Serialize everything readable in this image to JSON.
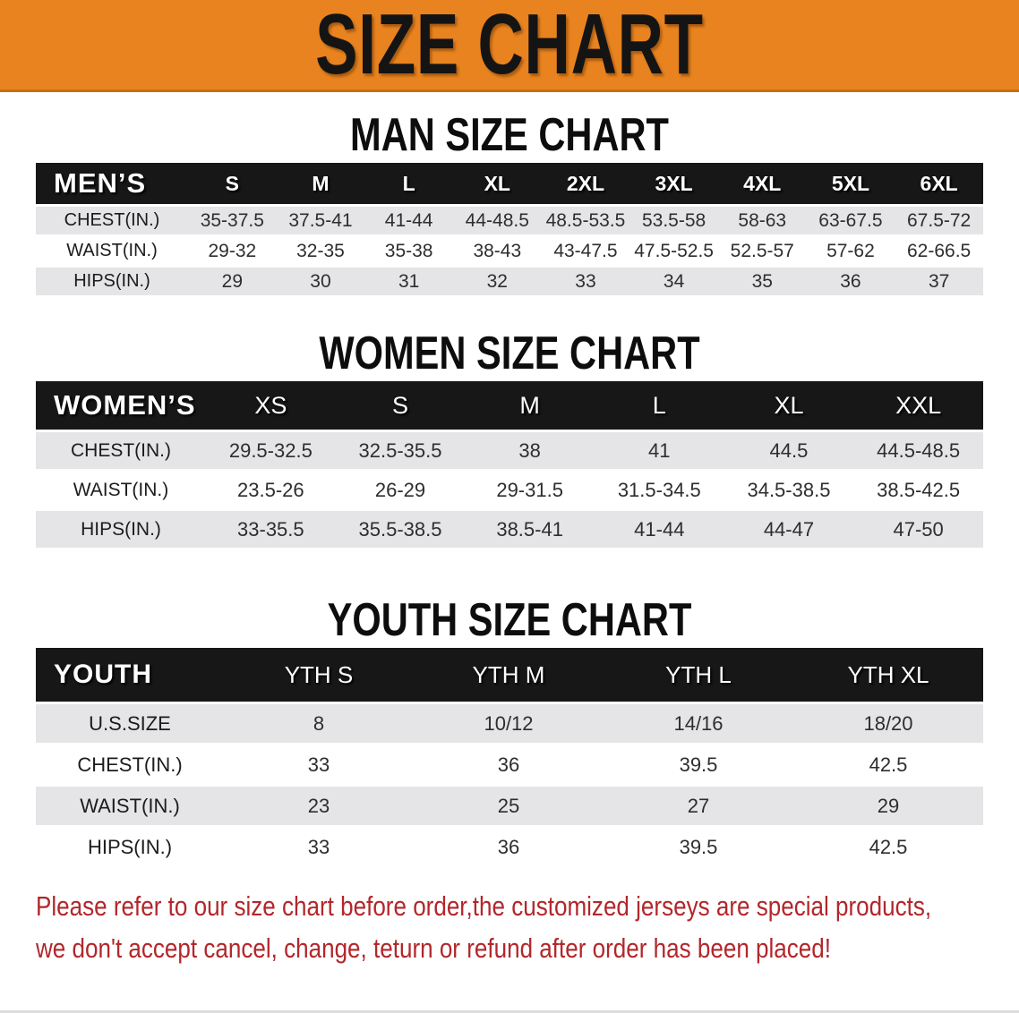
{
  "banner": {
    "title": "SIZE CHART",
    "bg_color": "#e8831f",
    "title_color": "#141414"
  },
  "sections": [
    {
      "heading": "MAN SIZE CHART",
      "table": {
        "header_label": "MEN’S",
        "sizes": [
          "S",
          "M",
          "L",
          "XL",
          "2XL",
          "3XL",
          "4XL",
          "5XL",
          "6XL"
        ],
        "rows": [
          {
            "label": "CHEST(IN.)",
            "values": [
              "35-37.5",
              "37.5-41",
              "41-44",
              "44-48.5",
              "48.5-53.5",
              "53.5-58",
              "58-63",
              "63-67.5",
              "67.5-72"
            ]
          },
          {
            "label": "WAIST(IN.)",
            "values": [
              "29-32",
              "32-35",
              "35-38",
              "38-43",
              "43-47.5",
              "47.5-52.5",
              "52.5-57",
              "57-62",
              "62-66.5"
            ]
          },
          {
            "label": "HIPS(IN.)",
            "values": [
              "29",
              "30",
              "31",
              "32",
              "33",
              "34",
              "35",
              "36",
              "37"
            ]
          }
        ]
      }
    },
    {
      "heading": "WOMEN SIZE CHART",
      "table": {
        "header_label": "WOMEN’S",
        "sizes": [
          "XS",
          "S",
          "M",
          "L",
          "XL",
          "XXL"
        ],
        "rows": [
          {
            "label": "CHEST(IN.)",
            "values": [
              "29.5-32.5",
              "32.5-35.5",
              "38",
              "41",
              "44.5",
              "44.5-48.5"
            ]
          },
          {
            "label": "WAIST(IN.)",
            "values": [
              "23.5-26",
              "26-29",
              "29-31.5",
              "31.5-34.5",
              "34.5-38.5",
              "38.5-42.5"
            ]
          },
          {
            "label": "HIPS(IN.)",
            "values": [
              "33-35.5",
              "35.5-38.5",
              "38.5-41",
              "41-44",
              "44-47",
              "47-50"
            ]
          }
        ]
      }
    },
    {
      "heading": "YOUTH SIZE CHART",
      "table": {
        "header_label": "YOUTH",
        "sizes": [
          "YTH S",
          "YTH M",
          "YTH L",
          "YTH XL"
        ],
        "rows": [
          {
            "label": "U.S.SIZE",
            "values": [
              "8",
              "10/12",
              "14/16",
              "18/20"
            ]
          },
          {
            "label": "CHEST(IN.)",
            "values": [
              "33",
              "36",
              "39.5",
              "42.5"
            ]
          },
          {
            "label": "WAIST(IN.)",
            "values": [
              "23",
              "25",
              "27",
              "29"
            ]
          },
          {
            "label": "HIPS(IN.)",
            "values": [
              "33",
              "36",
              "39.5",
              "42.5"
            ]
          }
        ]
      }
    }
  ],
  "footer": {
    "line1": "Please refer to our size chart before order,the customized jerseys are special products,",
    "line2": "we don't accept cancel, change, teturn or refund after order has been placed!",
    "text_color": "#b2272b"
  }
}
